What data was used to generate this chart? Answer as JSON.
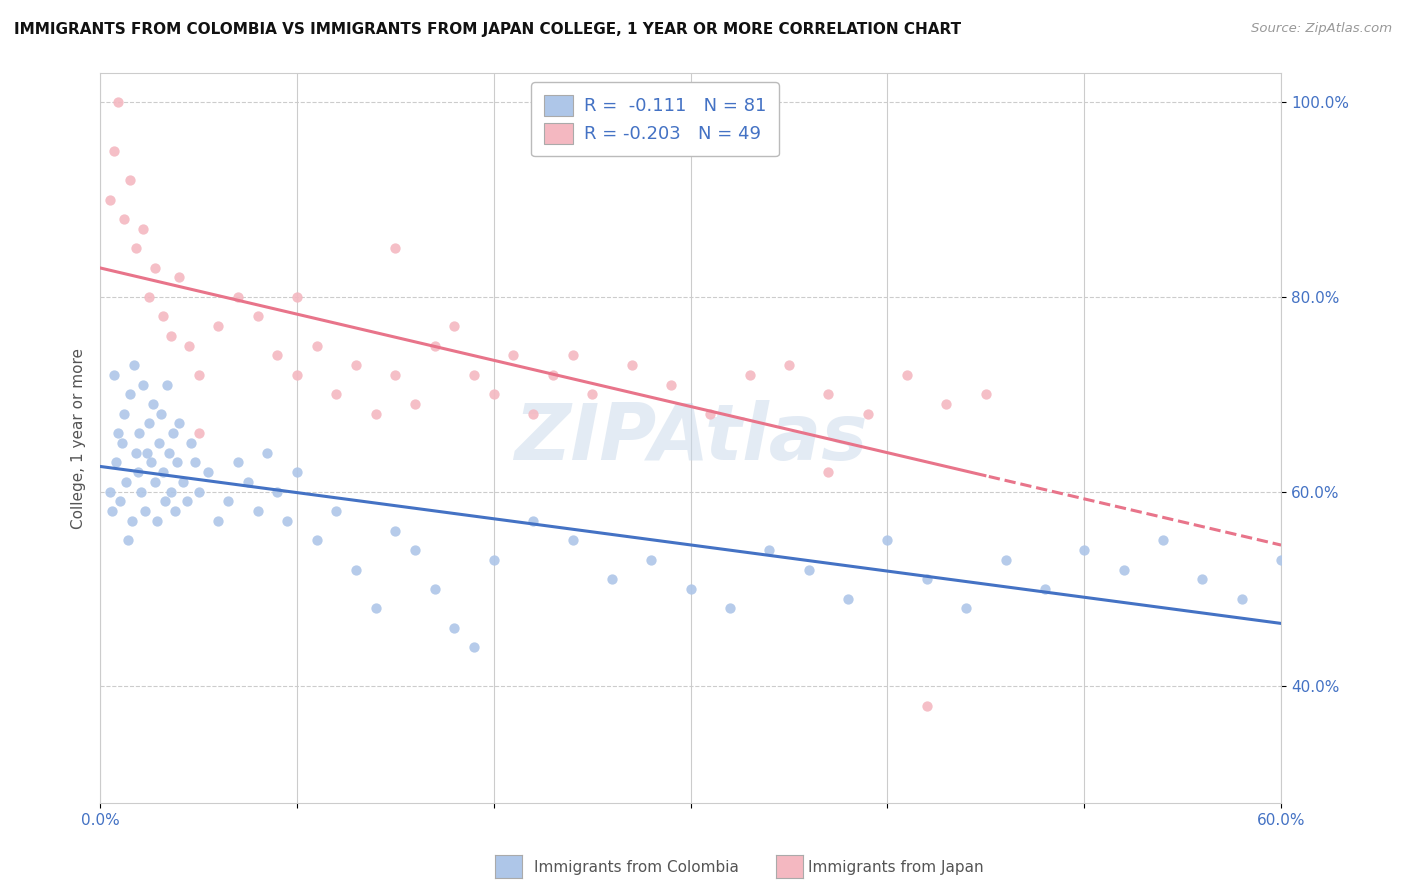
{
  "title": "IMMIGRANTS FROM COLOMBIA VS IMMIGRANTS FROM JAPAN COLLEGE, 1 YEAR OR MORE CORRELATION CHART",
  "source": "Source: ZipAtlas.com",
  "ylabel": "College, 1 year or more",
  "xlim": [
    0.0,
    0.6
  ],
  "ylim": [
    0.28,
    1.03
  ],
  "yticks": [
    0.4,
    0.6,
    0.8,
    1.0
  ],
  "yticklabels": [
    "40.0%",
    "60.0%",
    "80.0%",
    "100.0%"
  ],
  "colombia_color": "#aec6e8",
  "japan_color": "#f4b8c1",
  "colombia_line_color": "#4472c4",
  "japan_line_color": "#e8748a",
  "colombia_R": -0.111,
  "colombia_N": 81,
  "japan_R": -0.203,
  "japan_N": 49,
  "watermark": "ZIPAtlas",
  "legend_label_colombia": "Immigrants from Colombia",
  "legend_label_japan": "Immigrants from Japan",
  "colombia_scatter_x": [
    0.005,
    0.006,
    0.007,
    0.008,
    0.009,
    0.01,
    0.011,
    0.012,
    0.013,
    0.014,
    0.015,
    0.016,
    0.017,
    0.018,
    0.019,
    0.02,
    0.021,
    0.022,
    0.023,
    0.024,
    0.025,
    0.026,
    0.027,
    0.028,
    0.029,
    0.03,
    0.031,
    0.032,
    0.033,
    0.034,
    0.035,
    0.036,
    0.037,
    0.038,
    0.039,
    0.04,
    0.042,
    0.044,
    0.046,
    0.048,
    0.05,
    0.055,
    0.06,
    0.065,
    0.07,
    0.075,
    0.08,
    0.085,
    0.09,
    0.095,
    0.1,
    0.11,
    0.12,
    0.13,
    0.14,
    0.15,
    0.16,
    0.17,
    0.18,
    0.19,
    0.2,
    0.22,
    0.24,
    0.26,
    0.28,
    0.3,
    0.32,
    0.34,
    0.36,
    0.38,
    0.4,
    0.42,
    0.44,
    0.46,
    0.48,
    0.5,
    0.52,
    0.54,
    0.56,
    0.58,
    0.6
  ],
  "colombia_scatter_y": [
    0.6,
    0.58,
    0.72,
    0.63,
    0.66,
    0.59,
    0.65,
    0.68,
    0.61,
    0.55,
    0.7,
    0.57,
    0.73,
    0.64,
    0.62,
    0.66,
    0.6,
    0.71,
    0.58,
    0.64,
    0.67,
    0.63,
    0.69,
    0.61,
    0.57,
    0.65,
    0.68,
    0.62,
    0.59,
    0.71,
    0.64,
    0.6,
    0.66,
    0.58,
    0.63,
    0.67,
    0.61,
    0.59,
    0.65,
    0.63,
    0.6,
    0.62,
    0.57,
    0.59,
    0.63,
    0.61,
    0.58,
    0.64,
    0.6,
    0.57,
    0.62,
    0.55,
    0.58,
    0.52,
    0.48,
    0.56,
    0.54,
    0.5,
    0.46,
    0.44,
    0.53,
    0.57,
    0.55,
    0.51,
    0.53,
    0.5,
    0.48,
    0.54,
    0.52,
    0.49,
    0.55,
    0.51,
    0.48,
    0.53,
    0.5,
    0.54,
    0.52,
    0.55,
    0.51,
    0.49,
    0.53
  ],
  "japan_scatter_x": [
    0.005,
    0.007,
    0.009,
    0.012,
    0.015,
    0.018,
    0.022,
    0.025,
    0.028,
    0.032,
    0.036,
    0.04,
    0.045,
    0.05,
    0.06,
    0.07,
    0.08,
    0.09,
    0.1,
    0.11,
    0.12,
    0.13,
    0.14,
    0.15,
    0.16,
    0.17,
    0.18,
    0.19,
    0.2,
    0.21,
    0.22,
    0.23,
    0.24,
    0.25,
    0.27,
    0.29,
    0.31,
    0.33,
    0.35,
    0.37,
    0.39,
    0.41,
    0.43,
    0.45,
    0.37,
    0.05,
    0.1,
    0.15,
    0.42
  ],
  "japan_scatter_y": [
    0.9,
    0.95,
    1.0,
    0.88,
    0.92,
    0.85,
    0.87,
    0.8,
    0.83,
    0.78,
    0.76,
    0.82,
    0.75,
    0.72,
    0.77,
    0.8,
    0.78,
    0.74,
    0.72,
    0.75,
    0.7,
    0.73,
    0.68,
    0.72,
    0.69,
    0.75,
    0.77,
    0.72,
    0.7,
    0.74,
    0.68,
    0.72,
    0.74,
    0.7,
    0.73,
    0.71,
    0.68,
    0.72,
    0.73,
    0.7,
    0.68,
    0.72,
    0.69,
    0.7,
    0.62,
    0.66,
    0.8,
    0.85,
    0.38
  ]
}
